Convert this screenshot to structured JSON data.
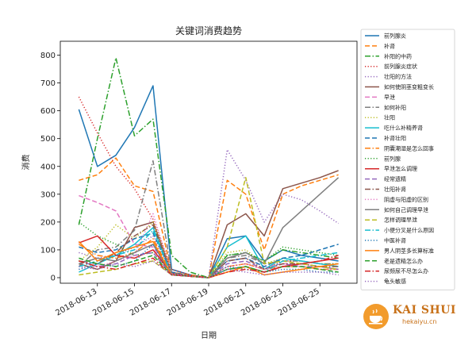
{
  "chart_data": {
    "type": "line",
    "title": "关键词消费趋势",
    "xlabel": "日期",
    "ylabel": "消费",
    "ylim": [
      -20,
      850
    ],
    "xlim": [
      "2018-06-11",
      "2018-06-27"
    ],
    "yticks": [
      0,
      100,
      200,
      300,
      400,
      500,
      600,
      700,
      800
    ],
    "xticks": [
      "2018-06-13",
      "2018-06-15",
      "2018-06-17",
      "2018-06-19",
      "2018-06-21",
      "2018-06-23",
      "2018-06-25"
    ],
    "legend_position": "right",
    "dates": [
      "2018-06-12",
      "2018-06-13",
      "2018-06-14",
      "2018-06-15",
      "2018-06-16",
      "2018-06-17",
      "2018-06-18",
      "2018-06-19",
      "2018-06-20",
      "2018-06-21",
      "2018-06-22",
      "2018-06-23",
      "2018-06-24",
      "2018-06-25",
      "2018-06-26"
    ],
    "series": [
      {
        "name": "前列腺炎",
        "color": "#1f77b4",
        "dash": "solid",
        "values": [
          605,
          400,
          440,
          540,
          690,
          30,
          10,
          0,
          140,
          150,
          60,
          100,
          80,
          70,
          60
        ]
      },
      {
        "name": "补肾",
        "color": "#ff7f0e",
        "dash": "dashed",
        "values": [
          350,
          370,
          430,
          330,
          310,
          20,
          10,
          0,
          350,
          300,
          100,
          300,
          330,
          350,
          370
        ]
      },
      {
        "name": "补阳的中药",
        "color": "#2ca02c",
        "dash": "dashdot",
        "values": [
          190,
          500,
          790,
          510,
          570,
          80,
          20,
          0,
          80,
          90,
          60,
          100,
          90,
          80,
          70
        ]
      },
      {
        "name": "前列腺炎症状",
        "color": "#d62728",
        "dash": "dotted",
        "values": [
          650,
          520,
          400,
          320,
          210,
          30,
          10,
          0,
          40,
          50,
          30,
          60,
          60,
          50,
          40
        ]
      },
      {
        "name": "壮阳的方法",
        "color": "#9467bd",
        "dash": "dotted",
        "values": [
          90,
          70,
          80,
          110,
          150,
          20,
          5,
          0,
          460,
          350,
          200,
          300,
          280,
          240,
          195
        ]
      },
      {
        "name": "如何使阴茎变粗变长",
        "color": "#8c564b",
        "dash": "solid",
        "values": [
          50,
          30,
          60,
          180,
          200,
          20,
          5,
          0,
          190,
          230,
          150,
          320,
          340,
          360,
          385
        ]
      },
      {
        "name": "早泄",
        "color": "#e377c2",
        "dash": "dashed",
        "values": [
          295,
          270,
          240,
          120,
          110,
          15,
          5,
          0,
          60,
          70,
          40,
          50,
          50,
          40,
          30
        ]
      },
      {
        "name": "如何补阳",
        "color": "#7f7f7f",
        "dash": "dashdot",
        "values": [
          40,
          100,
          110,
          170,
          420,
          20,
          5,
          0,
          70,
          80,
          50,
          60,
          60,
          50,
          50
        ]
      },
      {
        "name": "壮阳",
        "color": "#bcbd22",
        "dash": "dotted",
        "values": [
          60,
          110,
          190,
          140,
          200,
          20,
          5,
          0,
          90,
          100,
          50,
          70,
          60,
          50,
          50
        ]
      },
      {
        "name": "吃什么补精养肾",
        "color": "#17becf",
        "dash": "solid",
        "values": [
          20,
          50,
          80,
          120,
          180,
          15,
          5,
          0,
          110,
          150,
          30,
          70,
          60,
          50,
          40
        ]
      },
      {
        "name": "补肾壮阳",
        "color": "#1f77b4",
        "dash": "dashed",
        "values": [
          110,
          90,
          100,
          140,
          160,
          20,
          5,
          0,
          60,
          70,
          40,
          70,
          80,
          100,
          120
        ]
      },
      {
        "name": "阴囊潮湿是怎么回事",
        "color": "#ff7f0e",
        "dash": "dashdot",
        "values": [
          120,
          80,
          70,
          90,
          140,
          15,
          5,
          0,
          40,
          50,
          30,
          40,
          40,
          30,
          30
        ]
      },
      {
        "name": "前列腺",
        "color": "#2ca02c",
        "dash": "dotted",
        "values": [
          200,
          150,
          120,
          80,
          90,
          15,
          5,
          0,
          80,
          90,
          60,
          110,
          100,
          90,
          80
        ]
      },
      {
        "name": "早泄怎么调理",
        "color": "#d62728",
        "dash": "solid",
        "values": [
          125,
          150,
          80,
          70,
          100,
          15,
          5,
          0,
          30,
          40,
          20,
          40,
          50,
          60,
          70
        ]
      },
      {
        "name": "经常遗精",
        "color": "#9467bd",
        "dash": "dashed",
        "values": [
          60,
          40,
          50,
          80,
          90,
          10,
          5,
          0,
          50,
          60,
          30,
          50,
          40,
          40,
          30
        ]
      },
      {
        "name": "壮阳补肾",
        "color": "#8c564b",
        "dash": "dashdot",
        "values": [
          60,
          50,
          90,
          150,
          190,
          15,
          5,
          0,
          60,
          70,
          30,
          50,
          50,
          40,
          40
        ]
      },
      {
        "name": "阴虚与阳虚的区别",
        "color": "#e377c2",
        "dash": "dotted",
        "values": [
          30,
          40,
          60,
          80,
          230,
          15,
          5,
          0,
          40,
          50,
          30,
          40,
          40,
          30,
          30
        ]
      },
      {
        "name": "如何自己调理早泄",
        "color": "#7f7f7f",
        "dash": "solid",
        "values": [
          50,
          70,
          60,
          90,
          120,
          10,
          5,
          0,
          70,
          90,
          50,
          180,
          240,
          300,
          360
        ]
      },
      {
        "name": "怎样调理早泄",
        "color": "#bcbd22",
        "dash": "dashed",
        "values": [
          10,
          20,
          30,
          50,
          60,
          10,
          5,
          0,
          110,
          360,
          50,
          60,
          50,
          40,
          30
        ]
      },
      {
        "name": "小便分叉是什么原因",
        "color": "#17becf",
        "dash": "dashdot",
        "values": [
          40,
          60,
          80,
          100,
          170,
          10,
          5,
          0,
          30,
          40,
          20,
          60,
          70,
          80,
          90
        ]
      },
      {
        "name": "中医补肾",
        "color": "#1f77b4",
        "dash": "dotted",
        "values": [
          30,
          50,
          40,
          60,
          120,
          10,
          5,
          0,
          40,
          30,
          20,
          30,
          30,
          20,
          20
        ]
      },
      {
        "name": "男人阴茎多长算标准",
        "color": "#ff7f0e",
        "dash": "solid",
        "values": [
          130,
          60,
          90,
          110,
          130,
          10,
          5,
          0,
          20,
          40,
          10,
          20,
          30,
          40,
          50
        ]
      },
      {
        "name": "老是遗精怎么办",
        "color": "#2ca02c",
        "dash": "dashed",
        "values": [
          70,
          50,
          40,
          60,
          80,
          10,
          5,
          0,
          30,
          40,
          20,
          40,
          40,
          30,
          20
        ]
      },
      {
        "name": "尿频尿不尽怎么办",
        "color": "#d62728",
        "dash": "dashdot",
        "values": [
          60,
          40,
          30,
          50,
          70,
          10,
          5,
          0,
          20,
          30,
          20,
          40,
          50,
          60,
          80
        ]
      },
      {
        "name": "龟头敏感",
        "color": "#9467bd",
        "dash": "dotted",
        "values": [
          40,
          30,
          50,
          40,
          60,
          10,
          5,
          0,
          30,
          20,
          10,
          20,
          20,
          20,
          10
        ]
      }
    ]
  },
  "watermark": {
    "brand": "KAI SHUI",
    "site": "hekaiyu.cn"
  }
}
